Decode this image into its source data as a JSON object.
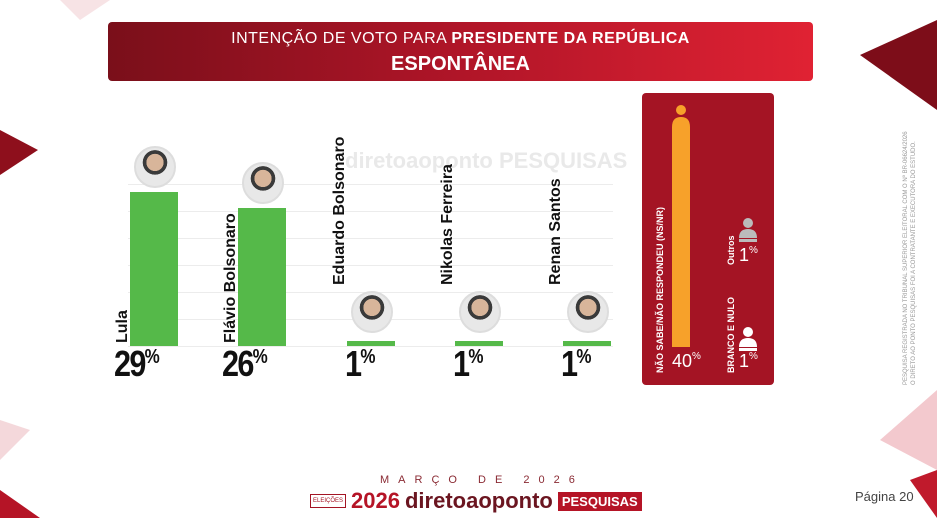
{
  "header": {
    "title_prefix": "INTENÇÃO DE VOTO PARA ",
    "title_bold": "PRESIDENTE DA REPÚBLICA",
    "subtitle": "ESPONTÂNEA"
  },
  "watermark": "diretoaoponto PESQUISAS",
  "chart_data": {
    "type": "bar",
    "title": "INTENÇÃO DE VOTO PARA PRESIDENTE DA REPÚBLICA - ESPONTÂNEA",
    "categories": [
      "Lula",
      "Flávio Bolsonaro",
      "Eduardo Bolsonaro",
      "Nikolas Ferreira",
      "Renan Santos"
    ],
    "values": [
      29,
      26,
      1,
      1,
      1
    ],
    "labels": [
      "29",
      "26",
      "1",
      "1",
      "1"
    ],
    "unit": "%",
    "ylim": [
      0,
      36
    ],
    "color": "#55b949",
    "others": [
      {
        "name": "NÃO SABE/NÃO RESPONDEU (NS/NR)",
        "value": 40,
        "label": "40",
        "color": "#f7a12a"
      },
      {
        "name": "Outros",
        "value": 1,
        "label": "1"
      },
      {
        "name": "BRANCO E NULO",
        "value": 1,
        "label": "1"
      }
    ]
  },
  "side_note": [
    "PESQUISA REGISTRADA NO TRIBUNAL SUPERIOR ELEITORAL COM O Nº BR-06624/2026",
    "O DIRETO AO PONTO PESQUISAS FOI A CONTRATANTE E EXECUTORA DO ESTUDO."
  ],
  "footer": {
    "month": "MARÇO DE 2026",
    "logo_year": "2026",
    "logo_name": "diretoaoponto",
    "logo_tag": "PESQUISAS",
    "logo_badge": "ELEIÇÕES",
    "page": "Página 20"
  }
}
